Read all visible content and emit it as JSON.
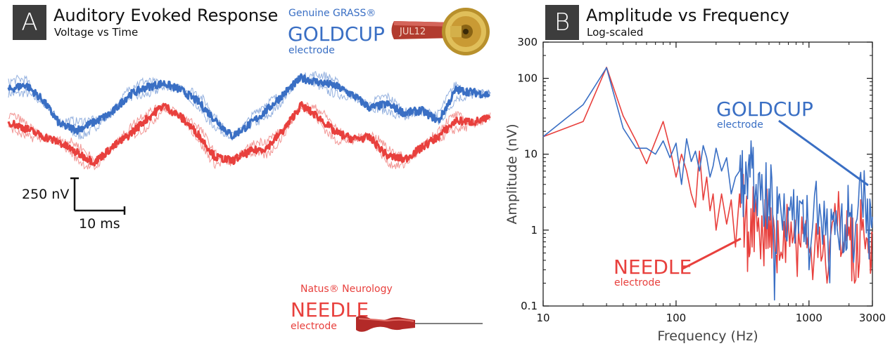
{
  "panel_a": {
    "letter": "A",
    "title": "Auditory Evoked Response",
    "subtitle": "Voltage vs Time",
    "goldcup": {
      "brand": "Genuine GRASS®",
      "name": "GOLDCUP",
      "type": "electrode",
      "tag": "JUL12"
    },
    "needle": {
      "brand": "Natus® Neurology",
      "name": "NEEDLE",
      "type": "electrode"
    },
    "scalebar": {
      "voltage_label": "250 nV",
      "time_label": "10 ms"
    }
  },
  "panel_b": {
    "letter": "B",
    "title": "Amplitude vs Frequency",
    "subtitle": "Log-scaled",
    "goldcup_label": {
      "name": "GOLDCUP",
      "type": "electrode"
    },
    "needle_label": {
      "name": "NEEDLE",
      "type": "electrode"
    }
  },
  "colors": {
    "goldcup": "#3a6fc4",
    "needle": "#e8403d",
    "axis": "#111111"
  },
  "chart_data": [
    {
      "type": "line",
      "title": "Auditory Evoked Response",
      "subtitle": "Voltage vs Time",
      "xlabel": "",
      "ylabel": "",
      "xlim": [
        0,
        140
      ],
      "x": [
        0,
        5,
        10,
        15,
        20,
        25,
        30,
        35,
        40,
        45,
        50,
        55,
        60,
        65,
        70,
        75,
        80,
        85,
        90,
        95,
        100,
        105,
        110,
        115,
        120,
        125,
        130,
        135,
        140
      ],
      "series": [
        {
          "name": "GOLDCUP",
          "values": [
            120,
            160,
            40,
            -150,
            -190,
            -130,
            -60,
            80,
            140,
            170,
            120,
            30,
            -110,
            -240,
            -150,
            -40,
            90,
            210,
            180,
            150,
            80,
            -20,
            10,
            -60,
            -40,
            -120,
            120,
            100,
            80
          ]
        },
        {
          "name": "NEEDLE",
          "values": [
            -130,
            -180,
            -240,
            -290,
            -370,
            -440,
            -330,
            -230,
            -110,
            0,
            -90,
            -220,
            -400,
            -430,
            -360,
            -330,
            -190,
            0,
            -90,
            -210,
            -260,
            -250,
            -390,
            -420,
            -330,
            -240,
            -120,
            -130,
            -100
          ]
        }
      ],
      "grid": false
    },
    {
      "type": "line",
      "title": "Amplitude vs Frequency",
      "subtitle": "Log-scaled",
      "xlabel": "Frequency (Hz)",
      "ylabel": "Amplitude (nV)",
      "xscale": "log",
      "yscale": "log",
      "xlim": [
        10,
        3000
      ],
      "ylim": [
        0.1,
        300
      ],
      "xticks": [
        "10",
        "100",
        "1000",
        "3000"
      ],
      "yticks": [
        "0.1",
        "1",
        "10",
        "100",
        "300"
      ],
      "x": [
        10,
        20,
        30,
        40,
        50,
        60,
        70,
        80,
        90,
        100,
        110,
        120,
        130,
        140,
        150,
        160,
        170,
        180,
        190,
        200,
        220,
        240,
        260,
        280,
        300,
        330,
        360,
        400,
        450,
        500,
        550,
        600,
        700,
        800,
        900,
        1000,
        1200,
        1400,
        1600,
        1800,
        2000,
        2200,
        2500,
        2800,
        3000
      ],
      "series": [
        {
          "name": "GOLDCUP",
          "values": [
            17,
            45,
            138,
            22,
            12,
            12,
            10,
            15,
            9,
            14,
            4,
            16,
            8,
            11,
            6,
            13,
            9,
            5,
            7,
            12,
            6,
            9,
            3,
            5,
            6,
            3,
            5,
            4,
            2.5,
            3.5,
            0.12,
            3,
            2,
            1.2,
            2.5,
            0.3,
            2.2,
            0.4,
            1.8,
            0.5,
            1.5,
            0.6,
            2.5,
            0.8,
            1.5
          ]
        },
        {
          "name": "NEEDLE",
          "values": [
            17,
            27,
            140,
            32,
            15,
            7.5,
            15,
            27,
            12,
            5,
            10,
            6,
            3,
            2,
            11,
            2.5,
            5,
            1.8,
            3,
            1,
            3,
            1.2,
            2.5,
            0.6,
            3,
            1.2,
            0.5,
            2,
            0.8,
            1.5,
            1,
            0.4,
            1.2,
            0.6,
            0.9,
            0.5,
            1.1,
            0.3,
            1.4,
            0.7,
            1.1,
            0.2,
            1,
            0.5,
            0.9
          ]
        }
      ],
      "grid": false
    }
  ]
}
